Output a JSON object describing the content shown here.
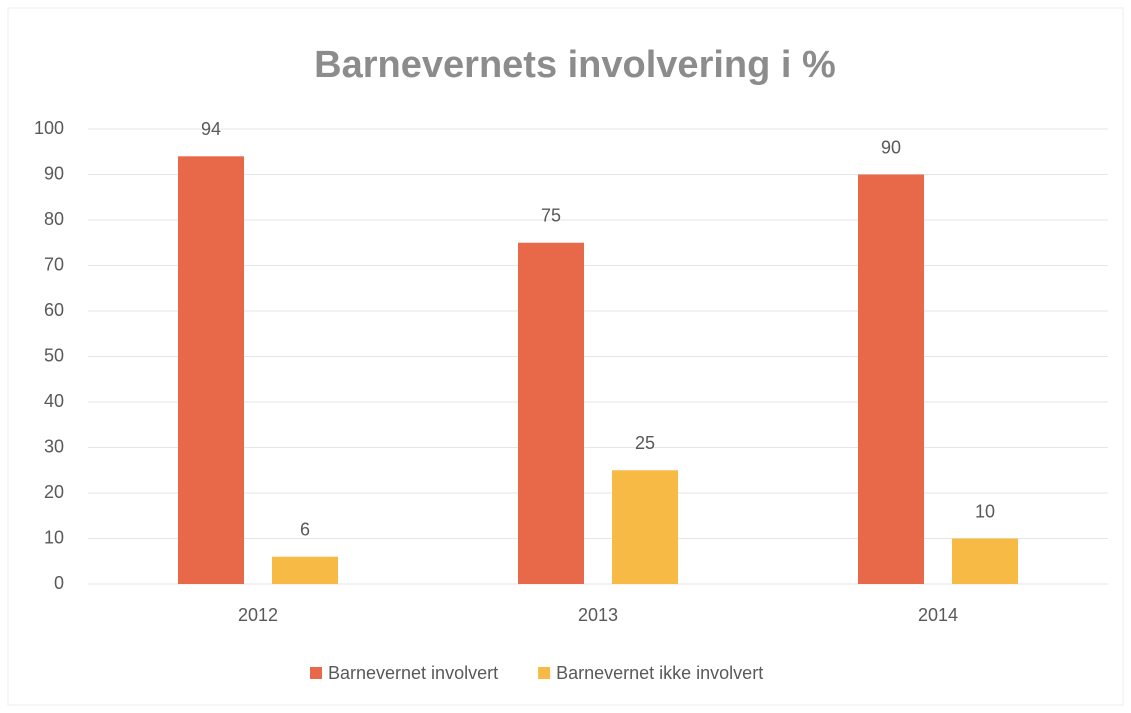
{
  "chart_data": {
    "type": "bar",
    "title": "Barnevernets involvering i %",
    "categories": [
      "2012",
      "2013",
      "2014"
    ],
    "series": [
      {
        "name": "Barnevernet involvert",
        "color": "#e8694a",
        "values": [
          94,
          75,
          90
        ]
      },
      {
        "name": "Barnevernet ikke involvert",
        "color": "#f7bb45",
        "values": [
          6,
          25,
          10
        ]
      }
    ],
    "ylim": [
      0,
      100
    ],
    "yticks": [
      0,
      10,
      20,
      30,
      40,
      50,
      60,
      70,
      80,
      90,
      100
    ],
    "grid": true,
    "legend": "bottom"
  }
}
